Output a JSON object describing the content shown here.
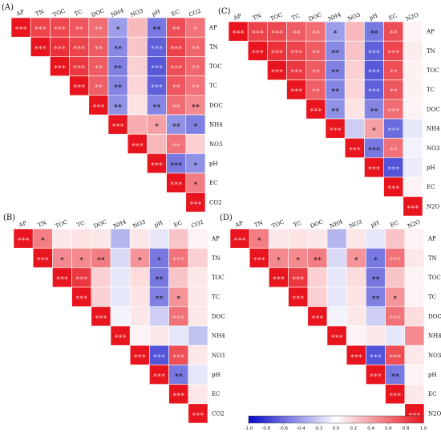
{
  "figure": {
    "colorbar": {
      "range": [
        -1.0,
        1.0
      ],
      "ticks": [
        "-1.0",
        "-0.8",
        "-0.6",
        "-0.4",
        "-0.2",
        "0.0",
        "0.2",
        "0.4",
        "0.6",
        "0.8",
        "1.0"
      ],
      "low_color": "#0a0ac8",
      "mid_color": "#ffffff",
      "high_color": "#e8141e"
    }
  },
  "chart_data": [
    {
      "type": "heatmap",
      "panel": "(A)",
      "variables": [
        "AP",
        "TN",
        "TOC",
        "TC",
        "DOC",
        "NH4",
        "NO3",
        "pH",
        "EC",
        "CO2"
      ],
      "values": [
        [
          1.0,
          0.8,
          0.78,
          0.72,
          0.62,
          -0.4,
          0.3,
          -0.55,
          0.75,
          0.6
        ],
        [
          null,
          1.0,
          0.88,
          0.8,
          0.7,
          -0.48,
          0.25,
          -0.65,
          0.8,
          0.65
        ],
        [
          null,
          null,
          1.0,
          0.85,
          0.7,
          -0.52,
          0.2,
          -0.68,
          0.75,
          0.65
        ],
        [
          null,
          null,
          null,
          1.0,
          0.68,
          -0.5,
          0.18,
          -0.65,
          0.72,
          0.6
        ],
        [
          null,
          null,
          null,
          null,
          1.0,
          -0.45,
          0.12,
          -0.5,
          0.62,
          0.5
        ],
        [
          null,
          null,
          null,
          null,
          null,
          1.0,
          0.35,
          0.4,
          -0.45,
          -0.52
        ],
        [
          null,
          null,
          null,
          null,
          null,
          null,
          1.0,
          0.3,
          0.6,
          0.2
        ],
        [
          null,
          null,
          null,
          null,
          null,
          null,
          null,
          1.0,
          -0.55,
          -0.45
        ],
        [
          null,
          null,
          null,
          null,
          null,
          null,
          null,
          null,
          1.0,
          0.55
        ],
        [
          null,
          null,
          null,
          null,
          null,
          null,
          null,
          null,
          null,
          1.0
        ]
      ],
      "significance": [
        [
          "***",
          "***",
          "***",
          "**",
          "**",
          "*",
          "",
          "**",
          "**",
          "*"
        ],
        [
          "",
          "***",
          "***",
          "***",
          "**",
          "**",
          "",
          "***",
          "***",
          "**"
        ],
        [
          "",
          "",
          "***",
          "***",
          "**",
          "**",
          "",
          "***",
          "***",
          "**"
        ],
        [
          "",
          "",
          "",
          "***",
          "**",
          "**",
          "",
          "***",
          "**",
          "**"
        ],
        [
          "",
          "",
          "",
          "",
          "***",
          "**",
          "",
          "**",
          "**",
          "**"
        ],
        [
          "",
          "",
          "",
          "",
          "",
          "***",
          "",
          "*",
          "**",
          "*"
        ],
        [
          "",
          "",
          "",
          "",
          "",
          "",
          "***",
          "",
          "**",
          ""
        ],
        [
          "",
          "",
          "",
          "",
          "",
          "",
          "",
          "***",
          "***",
          "*"
        ],
        [
          "",
          "",
          "",
          "",
          "",
          "",
          "",
          "",
          "***",
          "*"
        ],
        [
          "",
          "",
          "",
          "",
          "",
          "",
          "",
          "",
          "",
          "***"
        ]
      ]
    },
    {
      "type": "heatmap",
      "panel": "(C)",
      "variables": [
        "AP",
        "TN",
        "TOC",
        "TC",
        "DOC",
        "NH4",
        "NO3",
        "pH",
        "EC",
        "N2O"
      ],
      "values": [
        [
          1.0,
          0.8,
          0.78,
          0.7,
          0.62,
          -0.4,
          0.3,
          -0.55,
          0.75,
          0.05
        ],
        [
          null,
          1.0,
          0.88,
          0.8,
          0.7,
          -0.48,
          0.25,
          -0.65,
          0.8,
          0.08
        ],
        [
          null,
          null,
          1.0,
          0.85,
          0.7,
          -0.52,
          0.2,
          -0.68,
          0.75,
          0.06
        ],
        [
          null,
          null,
          null,
          1.0,
          0.68,
          -0.5,
          0.18,
          -0.65,
          0.72,
          0.06
        ],
        [
          null,
          null,
          null,
          null,
          1.0,
          -0.45,
          0.12,
          -0.5,
          0.62,
          0.05
        ],
        [
          null,
          null,
          null,
          null,
          null,
          1.0,
          -0.2,
          0.4,
          -0.6,
          -0.1
        ],
        [
          null,
          null,
          null,
          null,
          null,
          null,
          1.0,
          -0.55,
          0.6,
          -0.05
        ],
        [
          null,
          null,
          null,
          null,
          null,
          null,
          null,
          1.0,
          -0.7,
          -0.08
        ],
        [
          null,
          null,
          null,
          null,
          null,
          null,
          null,
          null,
          1.0,
          0.05
        ],
        [
          null,
          null,
          null,
          null,
          null,
          null,
          null,
          null,
          null,
          1.0
        ]
      ],
      "significance": [
        [
          "***",
          "***",
          "***",
          "**",
          "**",
          "*",
          "",
          "**",
          "**",
          ""
        ],
        [
          "",
          "***",
          "***",
          "***",
          "**",
          "**",
          "",
          "***",
          "***",
          ""
        ],
        [
          "",
          "",
          "***",
          "***",
          "**",
          "**",
          "",
          "***",
          "**",
          ""
        ],
        [
          "",
          "",
          "",
          "***",
          "**",
          "**",
          "",
          "***",
          "**",
          ""
        ],
        [
          "",
          "",
          "",
          "",
          "***",
          "**",
          "",
          "**",
          "***",
          ""
        ],
        [
          "",
          "",
          "",
          "",
          "",
          "***",
          "",
          "*",
          "***",
          ""
        ],
        [
          "",
          "",
          "",
          "",
          "",
          "",
          "***",
          "***",
          "**",
          ""
        ],
        [
          "",
          "",
          "",
          "",
          "",
          "",
          "",
          "***",
          "***",
          ""
        ],
        [
          "",
          "",
          "",
          "",
          "",
          "",
          "",
          "",
          "***",
          ""
        ],
        [
          "",
          "",
          "",
          "",
          "",
          "",
          "",
          "",
          "",
          "***"
        ]
      ]
    },
    {
      "type": "heatmap",
      "panel": "(B)",
      "variables": [
        "AP",
        "TN",
        "TOC",
        "TC",
        "DOC",
        "NH4",
        "NO3",
        "pH",
        "EC",
        "CO2"
      ],
      "values": [
        [
          1.0,
          0.55,
          0.1,
          0.12,
          0.1,
          -0.3,
          0.1,
          -0.1,
          0.25,
          0.05
        ],
        [
          null,
          1.0,
          0.5,
          0.5,
          0.55,
          -0.15,
          0.45,
          -0.55,
          0.6,
          0.2
        ],
        [
          null,
          null,
          1.0,
          0.85,
          0.2,
          -0.1,
          0.15,
          -0.55,
          0.25,
          0.1
        ],
        [
          null,
          null,
          null,
          1.0,
          0.2,
          -0.1,
          0.12,
          -0.52,
          0.45,
          0.1
        ],
        [
          null,
          null,
          null,
          null,
          1.0,
          -0.05,
          0.1,
          -0.2,
          0.6,
          0.1
        ],
        [
          null,
          null,
          null,
          null,
          null,
          1.0,
          0.05,
          0.1,
          -0.1,
          -0.25
        ],
        [
          null,
          null,
          null,
          null,
          null,
          null,
          1.0,
          -0.7,
          0.75,
          0.1
        ],
        [
          null,
          null,
          null,
          null,
          null,
          null,
          null,
          1.0,
          -0.55,
          -0.1
        ],
        [
          null,
          null,
          null,
          null,
          null,
          null,
          null,
          null,
          1.0,
          0.1
        ],
        [
          null,
          null,
          null,
          null,
          null,
          null,
          null,
          null,
          null,
          1.0
        ]
      ],
      "significance": [
        [
          "***",
          "*",
          "",
          "",
          "",
          "",
          "",
          "",
          "",
          ""
        ],
        [
          "",
          "***",
          "*",
          "*",
          "**",
          "",
          "*",
          "*",
          "***",
          ""
        ],
        [
          "",
          "",
          "***",
          "***",
          "",
          "",
          "",
          "**",
          "",
          ""
        ],
        [
          "",
          "",
          "",
          "***",
          "",
          "",
          "",
          "**",
          "*",
          ""
        ],
        [
          "",
          "",
          "",
          "",
          "***",
          "",
          "",
          "",
          "***",
          ""
        ],
        [
          "",
          "",
          "",
          "",
          "",
          "***",
          "",
          "",
          "",
          ""
        ],
        [
          "",
          "",
          "",
          "",
          "",
          "",
          "***",
          "***",
          "***",
          ""
        ],
        [
          "",
          "",
          "",
          "",
          "",
          "",
          "",
          "***",
          "**",
          ""
        ],
        [
          "",
          "",
          "",
          "",
          "",
          "",
          "",
          "",
          "***",
          ""
        ],
        [
          "",
          "",
          "",
          "",
          "",
          "",
          "",
          "",
          "",
          "***"
        ]
      ]
    },
    {
      "type": "heatmap",
      "panel": "(D)",
      "variables": [
        "AP",
        "TN",
        "TOC",
        "TC",
        "DOC",
        "NH4",
        "NO3",
        "pH",
        "EC",
        "N2O"
      ],
      "values": [
        [
          1.0,
          0.55,
          0.1,
          0.12,
          0.1,
          -0.3,
          0.1,
          -0.1,
          0.25,
          0.05
        ],
        [
          null,
          1.0,
          0.5,
          0.5,
          0.55,
          -0.15,
          0.45,
          -0.55,
          0.6,
          0.1
        ],
        [
          null,
          null,
          1.0,
          0.85,
          0.2,
          -0.1,
          0.15,
          -0.55,
          0.25,
          0.05
        ],
        [
          null,
          null,
          null,
          1.0,
          0.2,
          -0.1,
          0.12,
          -0.52,
          0.45,
          0.05
        ],
        [
          null,
          null,
          null,
          null,
          1.0,
          -0.05,
          0.1,
          -0.2,
          0.6,
          0.15
        ],
        [
          null,
          null,
          null,
          null,
          null,
          1.0,
          0.05,
          0.1,
          -0.1,
          0.5
        ],
        [
          null,
          null,
          null,
          null,
          null,
          null,
          1.0,
          -0.7,
          0.75,
          0.1
        ],
        [
          null,
          null,
          null,
          null,
          null,
          null,
          null,
          1.0,
          -0.55,
          0.05
        ],
        [
          null,
          null,
          null,
          null,
          null,
          null,
          null,
          null,
          1.0,
          0.1
        ],
        [
          null,
          null,
          null,
          null,
          null,
          null,
          null,
          null,
          null,
          1.0
        ]
      ],
      "significance": [
        [
          "***",
          "*",
          "",
          "",
          "",
          "",
          "",
          "",
          "",
          ""
        ],
        [
          "",
          "***",
          "*",
          "*",
          "**",
          "",
          "*",
          "*",
          "***",
          ""
        ],
        [
          "",
          "",
          "***",
          "***",
          "",
          "",
          "",
          "**",
          "",
          ""
        ],
        [
          "",
          "",
          "",
          "***",
          "",
          "",
          "",
          "**",
          "*",
          ""
        ],
        [
          "",
          "",
          "",
          "",
          "***",
          "",
          "",
          "",
          "***",
          ""
        ],
        [
          "",
          "",
          "",
          "",
          "",
          "***",
          "",
          "",
          "",
          ""
        ],
        [
          "",
          "",
          "",
          "",
          "",
          "",
          "***",
          "***",
          "***",
          ""
        ],
        [
          "",
          "",
          "",
          "",
          "",
          "",
          "",
          "***",
          "**",
          ""
        ],
        [
          "",
          "",
          "",
          "",
          "",
          "",
          "",
          "",
          "***",
          ""
        ],
        [
          "",
          "",
          "",
          "",
          "",
          "",
          "",
          "",
          "",
          "***"
        ]
      ]
    }
  ]
}
